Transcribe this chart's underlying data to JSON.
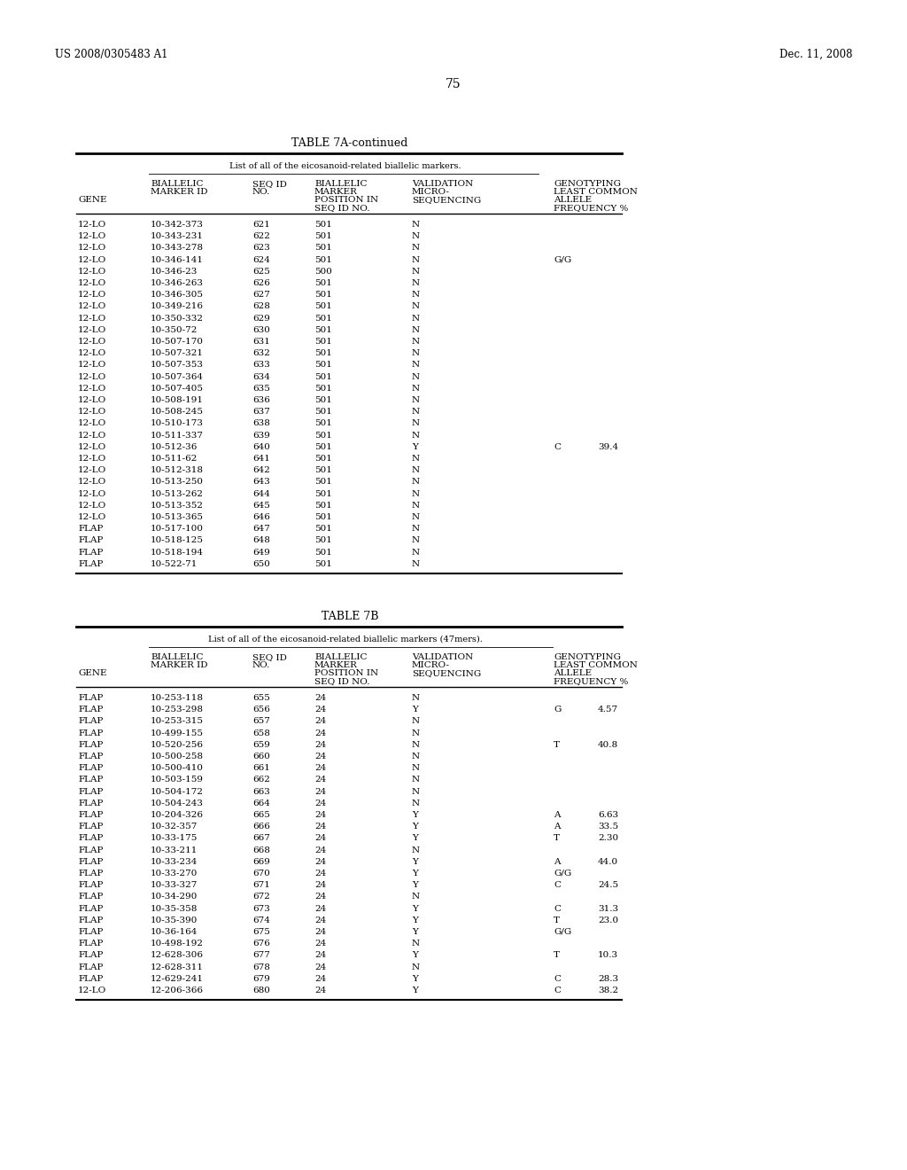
{
  "header_left": "US 2008/0305483 A1",
  "header_right": "Dec. 11, 2008",
  "page_number": "75",
  "table7a_title": "TABLE 7A-continued",
  "table7a_subtitle": "List of all of the eicosanoid-related biallelic markers.",
  "table7b_title": "TABLE 7B",
  "table7b_subtitle": "List of all of the eicosanoid-related biallelic markers (47mers).",
  "table7a_data": [
    [
      "12-LO",
      "10-342-373",
      "621",
      "501",
      "N",
      "",
      ""
    ],
    [
      "12-LO",
      "10-343-231",
      "622",
      "501",
      "N",
      "",
      ""
    ],
    [
      "12-LO",
      "10-343-278",
      "623",
      "501",
      "N",
      "",
      ""
    ],
    [
      "12-LO",
      "10-346-141",
      "624",
      "501",
      "N",
      "G/G",
      ""
    ],
    [
      "12-LO",
      "10-346-23",
      "625",
      "500",
      "N",
      "",
      ""
    ],
    [
      "12-LO",
      "10-346-263",
      "626",
      "501",
      "N",
      "",
      ""
    ],
    [
      "12-LO",
      "10-346-305",
      "627",
      "501",
      "N",
      "",
      ""
    ],
    [
      "12-LO",
      "10-349-216",
      "628",
      "501",
      "N",
      "",
      ""
    ],
    [
      "12-LO",
      "10-350-332",
      "629",
      "501",
      "N",
      "",
      ""
    ],
    [
      "12-LO",
      "10-350-72",
      "630",
      "501",
      "N",
      "",
      ""
    ],
    [
      "12-LO",
      "10-507-170",
      "631",
      "501",
      "N",
      "",
      ""
    ],
    [
      "12-LO",
      "10-507-321",
      "632",
      "501",
      "N",
      "",
      ""
    ],
    [
      "12-LO",
      "10-507-353",
      "633",
      "501",
      "N",
      "",
      ""
    ],
    [
      "12-LO",
      "10-507-364",
      "634",
      "501",
      "N",
      "",
      ""
    ],
    [
      "12-LO",
      "10-507-405",
      "635",
      "501",
      "N",
      "",
      ""
    ],
    [
      "12-LO",
      "10-508-191",
      "636",
      "501",
      "N",
      "",
      ""
    ],
    [
      "12-LO",
      "10-508-245",
      "637",
      "501",
      "N",
      "",
      ""
    ],
    [
      "12-LO",
      "10-510-173",
      "638",
      "501",
      "N",
      "",
      ""
    ],
    [
      "12-LO",
      "10-511-337",
      "639",
      "501",
      "N",
      "",
      ""
    ],
    [
      "12-LO",
      "10-512-36",
      "640",
      "501",
      "Y",
      "C",
      "39.4"
    ],
    [
      "12-LO",
      "10-511-62",
      "641",
      "501",
      "N",
      "",
      ""
    ],
    [
      "12-LO",
      "10-512-318",
      "642",
      "501",
      "N",
      "",
      ""
    ],
    [
      "12-LO",
      "10-513-250",
      "643",
      "501",
      "N",
      "",
      ""
    ],
    [
      "12-LO",
      "10-513-262",
      "644",
      "501",
      "N",
      "",
      ""
    ],
    [
      "12-LO",
      "10-513-352",
      "645",
      "501",
      "N",
      "",
      ""
    ],
    [
      "12-LO",
      "10-513-365",
      "646",
      "501",
      "N",
      "",
      ""
    ],
    [
      "FLAP",
      "10-517-100",
      "647",
      "501",
      "N",
      "",
      ""
    ],
    [
      "FLAP",
      "10-518-125",
      "648",
      "501",
      "N",
      "",
      ""
    ],
    [
      "FLAP",
      "10-518-194",
      "649",
      "501",
      "N",
      "",
      ""
    ],
    [
      "FLAP",
      "10-522-71",
      "650",
      "501",
      "N",
      "",
      ""
    ]
  ],
  "table7b_data": [
    [
      "FLAP",
      "10-253-118",
      "655",
      "24",
      "N",
      "",
      ""
    ],
    [
      "FLAP",
      "10-253-298",
      "656",
      "24",
      "Y",
      "G",
      "4.57"
    ],
    [
      "FLAP",
      "10-253-315",
      "657",
      "24",
      "N",
      "",
      ""
    ],
    [
      "FLAP",
      "10-499-155",
      "658",
      "24",
      "N",
      "",
      ""
    ],
    [
      "FLAP",
      "10-520-256",
      "659",
      "24",
      "N",
      "T",
      "40.8"
    ],
    [
      "FLAP",
      "10-500-258",
      "660",
      "24",
      "N",
      "",
      ""
    ],
    [
      "FLAP",
      "10-500-410",
      "661",
      "24",
      "N",
      "",
      ""
    ],
    [
      "FLAP",
      "10-503-159",
      "662",
      "24",
      "N",
      "",
      ""
    ],
    [
      "FLAP",
      "10-504-172",
      "663",
      "24",
      "N",
      "",
      ""
    ],
    [
      "FLAP",
      "10-504-243",
      "664",
      "24",
      "N",
      "",
      ""
    ],
    [
      "FLAP",
      "10-204-326",
      "665",
      "24",
      "Y",
      "A",
      "6.63"
    ],
    [
      "FLAP",
      "10-32-357",
      "666",
      "24",
      "Y",
      "A",
      "33.5"
    ],
    [
      "FLAP",
      "10-33-175",
      "667",
      "24",
      "Y",
      "T",
      "2.30"
    ],
    [
      "FLAP",
      "10-33-211",
      "668",
      "24",
      "N",
      "",
      ""
    ],
    [
      "FLAP",
      "10-33-234",
      "669",
      "24",
      "Y",
      "A",
      "44.0"
    ],
    [
      "FLAP",
      "10-33-270",
      "670",
      "24",
      "Y",
      "G/G",
      ""
    ],
    [
      "FLAP",
      "10-33-327",
      "671",
      "24",
      "Y",
      "C",
      "24.5"
    ],
    [
      "FLAP",
      "10-34-290",
      "672",
      "24",
      "N",
      "",
      ""
    ],
    [
      "FLAP",
      "10-35-358",
      "673",
      "24",
      "Y",
      "C",
      "31.3"
    ],
    [
      "FLAP",
      "10-35-390",
      "674",
      "24",
      "Y",
      "T",
      "23.0"
    ],
    [
      "FLAP",
      "10-36-164",
      "675",
      "24",
      "Y",
      "G/G",
      ""
    ],
    [
      "FLAP",
      "10-498-192",
      "676",
      "24",
      "N",
      "",
      ""
    ],
    [
      "FLAP",
      "12-628-306",
      "677",
      "24",
      "Y",
      "T",
      "10.3"
    ],
    [
      "FLAP",
      "12-628-311",
      "678",
      "24",
      "N",
      "",
      ""
    ],
    [
      "FLAP",
      "12-629-241",
      "679",
      "24",
      "Y",
      "C",
      "28.3"
    ],
    [
      "12-LO",
      "12-206-366",
      "680",
      "24",
      "Y",
      "C",
      "38.2"
    ]
  ],
  "col_headers_line1": [
    "",
    "BIALLELIC",
    "SEQ ID",
    "BIALLELIC",
    "VALIDATION",
    "GENOTYPING"
  ],
  "col_headers_line2": [
    "",
    "MARKER ID",
    "NO.",
    "MARKER",
    "MICRO-",
    "LEAST COMMON"
  ],
  "col_headers_line3": [
    "GENE",
    "",
    "",
    "POSITION IN",
    "SEQUENCING",
    "ALLELE"
  ],
  "col_headers_line4": [
    "",
    "",
    "",
    "SEQ ID NO.",
    "",
    "FREQUENCY %"
  ],
  "bg_color": "#ffffff",
  "text_color": "#000000"
}
